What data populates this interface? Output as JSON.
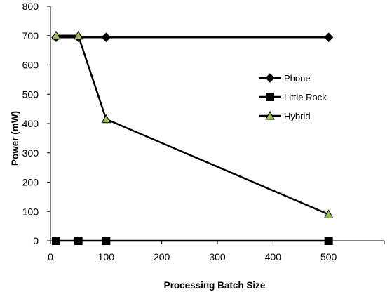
{
  "chart_data": {
    "type": "line",
    "title": "",
    "xlabel": "Processing Batch Size",
    "ylabel": "Power (mW)",
    "xlim": [
      0,
      600
    ],
    "ylim": [
      0,
      800
    ],
    "xticks": [
      0,
      100,
      200,
      300,
      400,
      500
    ],
    "yticks": [
      0,
      100,
      200,
      300,
      400,
      500,
      600,
      700,
      800
    ],
    "grid": false,
    "legend_position": "right",
    "series": [
      {
        "name": "Phone",
        "marker": "diamond",
        "color": "#000000",
        "x": [
          10,
          50,
          100,
          500
        ],
        "y": [
          694,
          694,
          694,
          694
        ]
      },
      {
        "name": "Little Rock",
        "marker": "square",
        "color": "#000000",
        "x": [
          10,
          50,
          100,
          500
        ],
        "y": [
          0,
          0,
          0,
          0
        ]
      },
      {
        "name": "Hybrid",
        "marker": "triangle",
        "color": "#000000",
        "marker_fill": "#9bbb59",
        "x": [
          10,
          50,
          100,
          500
        ],
        "y": [
          700,
          700,
          415,
          90
        ]
      }
    ]
  }
}
